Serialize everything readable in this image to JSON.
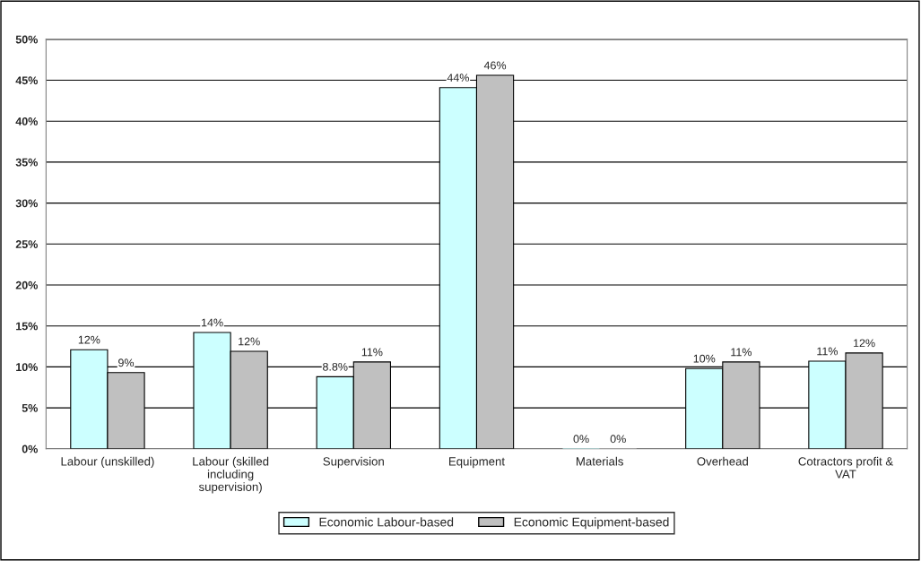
{
  "chart_data": {
    "type": "bar",
    "categories": [
      "Labour (unskilled)",
      "Labour (skilled including supervision)",
      "Supervision",
      "Equipment",
      "Materials",
      "Overhead",
      "Cotractors profit & VAT"
    ],
    "series": [
      {
        "name": "Economic Labour-based",
        "color": "#ccffff",
        "values": [
          12.1,
          14.2,
          8.8,
          44.1,
          0,
          9.8,
          10.7
        ],
        "value_labels": [
          "12%",
          "14%",
          "8.8%",
          "44%",
          "0%",
          "10%",
          "11%"
        ]
      },
      {
        "name": "Economic Equipment-based",
        "color": "#c0c0c0",
        "values": [
          9.3,
          11.9,
          10.6,
          45.6,
          0,
          10.6,
          11.7
        ],
        "value_labels": [
          "9%",
          "12%",
          "11%",
          "46%",
          "0%",
          "11%",
          "12%"
        ]
      }
    ],
    "ylim": [
      0,
      50
    ],
    "yticks": [
      {
        "value": 0,
        "label": "0%"
      },
      {
        "value": 5,
        "label": "5%"
      },
      {
        "value": 10,
        "label": "10%"
      },
      {
        "value": 15,
        "label": "15%"
      },
      {
        "value": 20,
        "label": "20%"
      },
      {
        "value": 25,
        "label": "25%"
      },
      {
        "value": 30,
        "label": "30%"
      },
      {
        "value": 35,
        "label": "35%"
      },
      {
        "value": 40,
        "label": "40%"
      },
      {
        "value": 45,
        "label": "45%"
      },
      {
        "value": 50,
        "label": "50%"
      }
    ],
    "grid": "y",
    "legend": "bottom"
  }
}
